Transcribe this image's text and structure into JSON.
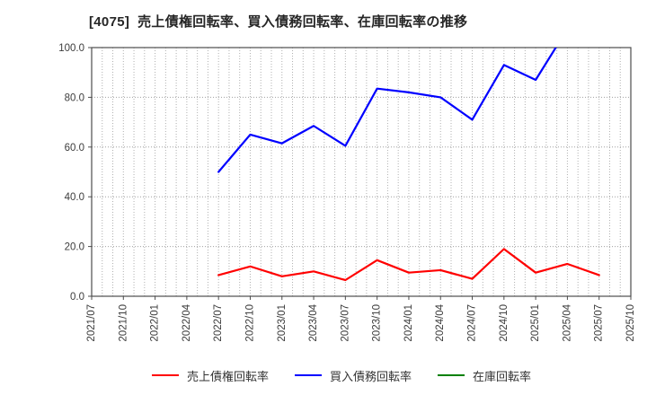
{
  "title": "[4075]  売上債権回転率、買入債務回転率、在庫回転率の推移",
  "chart_data": {
    "type": "line",
    "title": "[4075]  売上債権回転率、買入債務回転率、在庫回転率の推移",
    "x_tick_labels": [
      "2021/07",
      "2021/10",
      "2022/01",
      "2022/04",
      "2022/07",
      "2022/10",
      "2023/01",
      "2023/04",
      "2023/07",
      "2023/10",
      "2024/01",
      "2024/04",
      "2024/07",
      "2024/10",
      "2025/01",
      "2025/04",
      "2025/07",
      "2025/10"
    ],
    "y_ticks": [
      "0.0",
      "20.0",
      "40.0",
      "60.0",
      "80.0",
      "100.0"
    ],
    "ylim": [
      0,
      100
    ],
    "grid": true,
    "minor_x_grid_every_month": true,
    "legend_position": "bottom",
    "series": [
      {
        "name": "売上債権回転率",
        "color": "#ff0000",
        "start_label": "2022/07",
        "start_index": 4,
        "values": [
          8.5,
          12,
          8,
          10,
          6.5,
          14.5,
          9.5,
          10.5,
          7,
          19,
          9.5,
          13,
          8.5
        ]
      },
      {
        "name": "買入債務回転率",
        "color": "#0000ff",
        "start_label": "2022/07",
        "start_index": 4,
        "values": [
          50,
          65,
          61.5,
          68.5,
          60.5,
          83.5,
          82,
          80,
          71,
          93,
          87,
          107.5
        ],
        "clipped_at_top": true
      },
      {
        "name": "在庫回転率",
        "color": "#008000",
        "start_label": null,
        "start_index": 4,
        "values": []
      }
    ]
  }
}
